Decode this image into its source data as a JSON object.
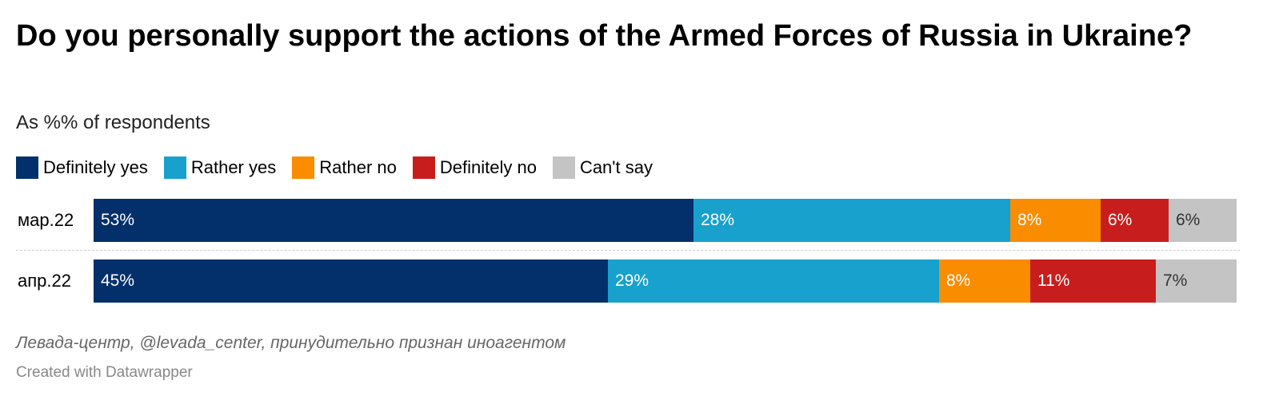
{
  "chart_data": {
    "type": "bar",
    "orientation": "horizontal",
    "stacked": true,
    "title": "Do you personally support the actions of the Armed Forces of Russia in Ukraine?",
    "subtitle": "As %% of respondents",
    "categories": [
      "мар.22",
      "апр.22"
    ],
    "series": [
      {
        "name": "Definitely yes",
        "color": "#03306b",
        "label_color": "#ffffff",
        "values": [
          53,
          45
        ]
      },
      {
        "name": "Rather yes",
        "color": "#18a1cd",
        "label_color": "#ffffff",
        "values": [
          28,
          29
        ]
      },
      {
        "name": "Rather no",
        "color": "#fa8c00",
        "label_color": "#ffffff",
        "values": [
          8,
          8
        ]
      },
      {
        "name": "Definitely no",
        "color": "#c71e1d",
        "label_color": "#ffffff",
        "values": [
          6,
          11
        ]
      },
      {
        "name": "Can't say",
        "color": "#c4c4c4",
        "label_color": "#333333",
        "values": [
          6,
          7
        ]
      }
    ],
    "value_suffix": "%",
    "legend_position": "top-left",
    "source": "Левада-центр, @levada_center, принудительно признан иноагентом",
    "credit": "Created with Datawrapper"
  }
}
